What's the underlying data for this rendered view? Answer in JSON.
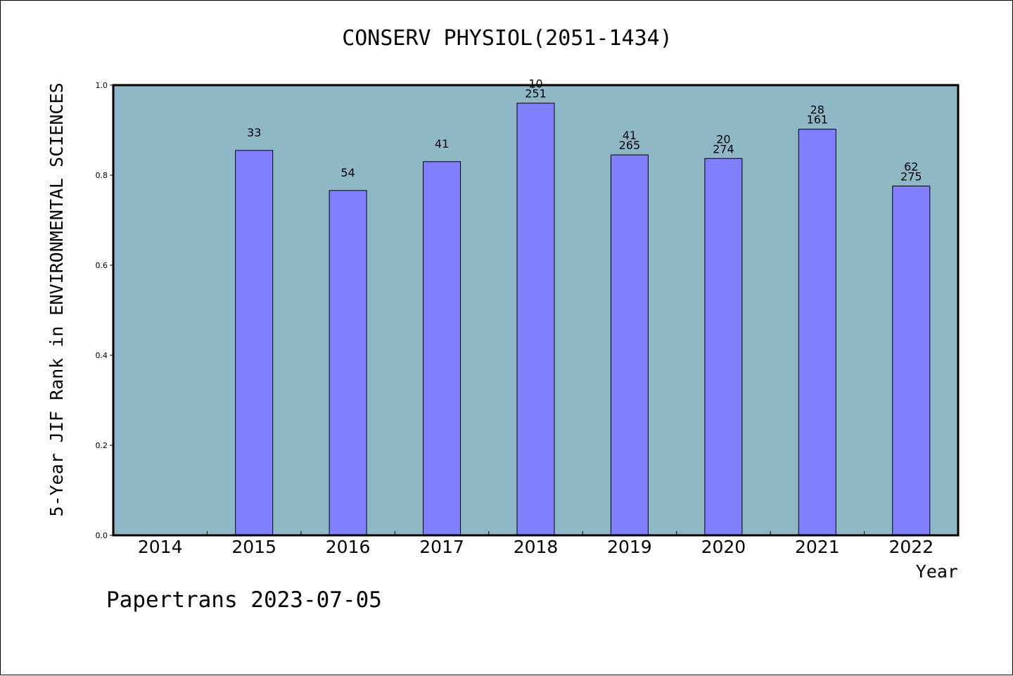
{
  "title": "CONSERV PHYSIOL(2051-1434)",
  "footer": "Papertrans 2023-07-05",
  "colors": {
    "plot_background": "#8fb8c7",
    "bar_fill": "#8080ff",
    "bar_stroke": "#000000",
    "axis": "#000000"
  },
  "chart_data": {
    "type": "bar",
    "title": "CONSERV PHYSIOL(2051-1434)",
    "xlabel": "Year",
    "ylabel": "5-Year JIF Rank in ENVIRONMENTAL SCIENCES",
    "ylim": [
      0,
      1.0
    ],
    "yticks": [
      "0.0",
      "0.2",
      "0.4",
      "0.6",
      "0.8",
      "1.0"
    ],
    "grid": false,
    "categories": [
      "2014",
      "2015",
      "2016",
      "2017",
      "2018",
      "2019",
      "2020",
      "2021",
      "2022"
    ],
    "values": [
      null,
      0.855,
      0.766,
      0.83,
      0.96,
      0.845,
      0.837,
      0.902,
      0.776
    ],
    "annotations": [
      [],
      [
        "33"
      ],
      [
        "54"
      ],
      [
        "41"
      ],
      [
        "10",
        "251"
      ],
      [
        "41",
        "265"
      ],
      [
        "20",
        "274"
      ],
      [
        "28",
        "161"
      ],
      [
        "62",
        "275"
      ]
    ]
  }
}
